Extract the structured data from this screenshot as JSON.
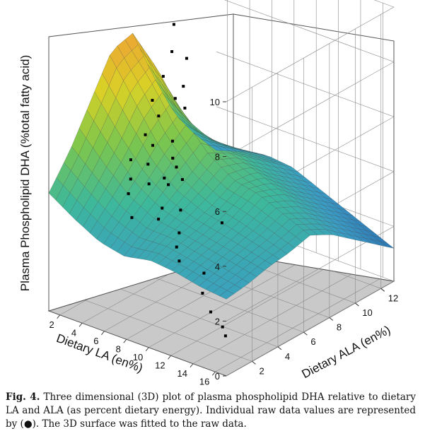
{
  "chart_data": {
    "type": "3d-surface",
    "xlabel": "Dietary LA (en%)",
    "ylabel": "Dietary ALA (en%)",
    "zlabel": "Plasma Phospholipid DHA (%total fatty acid)",
    "x_ticks": [
      "2",
      "4",
      "6",
      "8",
      "10",
      "12",
      "14",
      "16"
    ],
    "y_ticks": [
      "2",
      "4",
      "6",
      "8",
      "10",
      "12"
    ],
    "z_ticks": [
      "0",
      "2",
      "4",
      "6",
      "8",
      "10"
    ],
    "xlim": [
      1,
      17
    ],
    "ylim": [
      0,
      13
    ],
    "zlim": [
      0,
      10
    ],
    "grid": true,
    "colormap": [
      "#2a6fb0",
      "#3a9bc6",
      "#3db89c",
      "#7cc64d",
      "#d9d126",
      "#f0a035"
    ],
    "surface_rows": [
      [
        4.3,
        3.7,
        3.2,
        3.0,
        3.2,
        3.1,
        2.9,
        2.8
      ],
      [
        5.4,
        4.6,
        3.9,
        3.5,
        3.5,
        3.3,
        3.1,
        2.9
      ],
      [
        6.8,
        5.6,
        4.6,
        4.0,
        3.7,
        3.5,
        3.3,
        3.1
      ],
      [
        8.2,
        6.8,
        5.4,
        4.5,
        4.0,
        3.8,
        3.5,
        3.2
      ],
      [
        8.4,
        7.4,
        6.0,
        5.0,
        4.4,
        4.2,
        3.8,
        3.4
      ],
      [
        6.4,
        5.5,
        4.8,
        4.6,
        4.3,
        3.9,
        3.4,
        3.0
      ],
      [
        4.6,
        4.2,
        4.1,
        4.0,
        3.6,
        3.2,
        2.8,
        2.4
      ],
      [
        3.4,
        3.4,
        3.5,
        3.4,
        3.0,
        2.6,
        2.2,
        1.8
      ],
      [
        2.4,
        2.7,
        2.9,
        2.8,
        2.4,
        2.0,
        1.6,
        1.2
      ]
    ],
    "raw_points": [
      [
        2.4,
        8.5,
        8.4
      ],
      [
        2.8,
        8.0,
        7.6
      ],
      [
        3.2,
        8.8,
        7.2
      ],
      [
        2.6,
        7.5,
        6.8
      ],
      [
        3.6,
        8.2,
        6.4
      ],
      [
        2.2,
        7.0,
        6.0
      ],
      [
        3.0,
        6.8,
        5.6
      ],
      [
        3.8,
        7.4,
        6.2
      ],
      [
        2.5,
        6.2,
        5.0
      ],
      [
        4.2,
        7.8,
        5.8
      ],
      [
        3.4,
        6.0,
        4.8
      ],
      [
        2.0,
        5.5,
        4.2
      ],
      [
        4.6,
        6.5,
        5.0
      ],
      [
        3.9,
        5.2,
        4.4
      ],
      [
        2.8,
        4.8,
        3.8
      ],
      [
        5.2,
        6.0,
        4.6
      ],
      [
        4.8,
        4.5,
        4.0
      ],
      [
        3.3,
        4.2,
        3.5
      ],
      [
        5.6,
        5.0,
        4.2
      ],
      [
        6.2,
        4.8,
        4.1
      ],
      [
        6.8,
        3.8,
        3.6
      ],
      [
        7.4,
        3.0,
        3.5
      ],
      [
        8.0,
        4.2,
        3.6
      ],
      [
        8.8,
        3.4,
        3.1
      ],
      [
        9.5,
        2.6,
        2.9
      ],
      [
        10.2,
        2.2,
        2.6
      ],
      [
        11.5,
        4.4,
        3.6
      ],
      [
        12.2,
        2.4,
        2.4
      ],
      [
        13.0,
        1.6,
        2.0
      ],
      [
        14.2,
        1.2,
        1.6
      ],
      [
        15.5,
        1.0,
        1.3
      ],
      [
        16.0,
        0.8,
        1.1
      ],
      [
        6.0,
        5.6,
        4.5
      ],
      [
        7.0,
        5.2,
        4.3
      ],
      [
        5.0,
        3.0,
        3.2
      ]
    ]
  },
  "caption": {
    "fig_label": "Fig. 4.",
    "text": "Three dimensional (3D) plot of plasma phospholipid DHA relative to dietary LA and ALA (as percent dietary energy). Individual raw data values are represented by (●). The 3D surface was fitted to the raw data."
  }
}
